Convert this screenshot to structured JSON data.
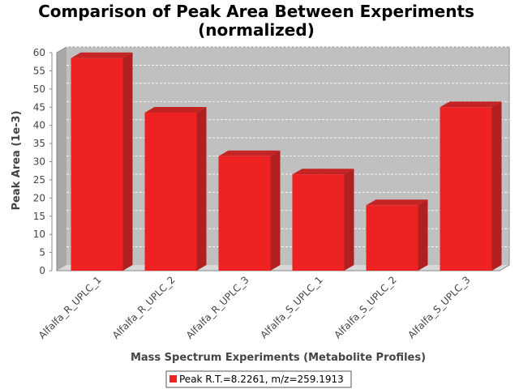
{
  "chart_data": {
    "type": "bar",
    "title_lines": [
      "Comparison of Peak Area Between Experiments",
      "(normalized)"
    ],
    "xlabel": "Mass Spectrum Experiments (Metabolite Profiles)",
    "ylabel": "Peak Area (1e-3)",
    "categories": [
      "Alfalfa_R_UPLC_1",
      "Alfalfa_R_UPLC_2",
      "Alfalfa_R_UPLC_3",
      "Alfalfa_S_UPLC_1",
      "Alfalfa_S_UPLC_2",
      "Alfalfa_S_UPLC_3"
    ],
    "series": [
      {
        "name": "Peak R.T.=8.2261, m/z=259.1913",
        "values": [
          58.5,
          43.5,
          31.5,
          26.5,
          18,
          45
        ],
        "color": "#ee2222"
      }
    ],
    "ylim": [
      0,
      60
    ],
    "yticks": [
      0,
      5,
      10,
      15,
      20,
      25,
      30,
      35,
      40,
      45,
      50,
      55,
      60
    ],
    "grid": true,
    "legend_position": "bottom",
    "colors": {
      "plot_background": "#c0c0c0",
      "wall_side": "#a8a8a8",
      "floor": "#d8d8d8",
      "bar_front": "#ee2222",
      "bar_top": "#c42424",
      "bar_side": "#b02020",
      "grid": "#ffffff"
    }
  }
}
